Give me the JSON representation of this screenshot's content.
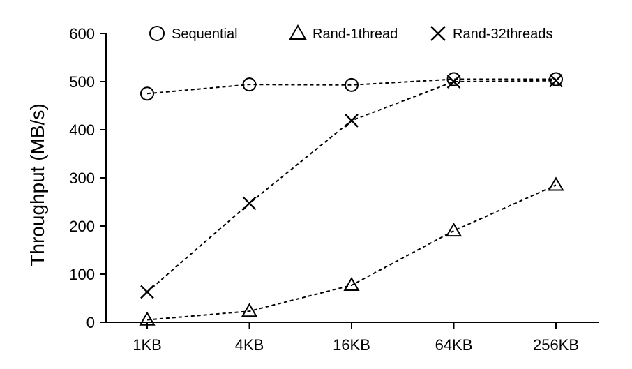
{
  "chart_data": {
    "type": "line",
    "categories": [
      "1KB",
      "4KB",
      "16KB",
      "64KB",
      "256KB"
    ],
    "ylabel": "Throughput (MB/s)",
    "xlabel": "",
    "ylim": [
      0,
      600
    ],
    "yticks": [
      0,
      100,
      200,
      300,
      400,
      500,
      600
    ],
    "grid": false,
    "legend_position": "top",
    "series": [
      {
        "name": "Sequential",
        "marker": "circle",
        "values": [
          475,
          494,
          493,
          505,
          505
        ]
      },
      {
        "name": "Rand-1thread",
        "marker": "triangle",
        "values": [
          5,
          23,
          77,
          190,
          285
        ]
      },
      {
        "name": "Rand-32threads",
        "marker": "x",
        "values": [
          63,
          247,
          419,
          500,
          502
        ]
      }
    ],
    "line_style": "dotted",
    "line_color": "#000000"
  }
}
